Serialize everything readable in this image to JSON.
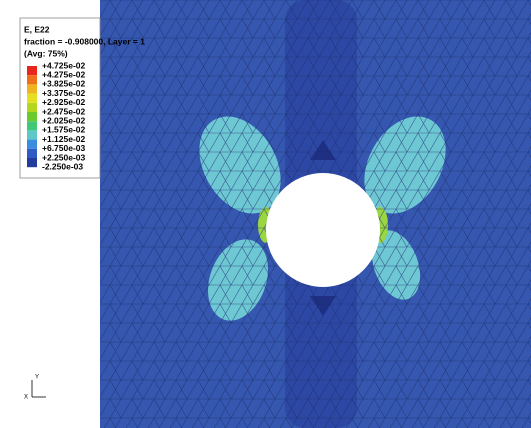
{
  "legend": {
    "title": "E, E22",
    "subtitle": "fraction = -0.908000, Layer = 1",
    "note": "(Avg: 75%)",
    "labels": [
      "+4.725e-02",
      "+4.275e-02",
      "+3.825e-02",
      "+3.375e-02",
      "+2.925e-02",
      "+2.475e-02",
      "+2.025e-02",
      "+1.575e-02",
      "+1.125e-02",
      "+6.750e-03",
      "+2.250e-03",
      "-2.250e-03"
    ],
    "colors": [
      "#e8261c",
      "#f0701a",
      "#f0b420",
      "#e4e020",
      "#b4d820",
      "#6cca2c",
      "#40c878",
      "#5ec8c8",
      "#3a8ee0",
      "#2c5cc4",
      "#223c9c"
    ]
  },
  "triad": {
    "y": "Y",
    "x": "X"
  }
}
